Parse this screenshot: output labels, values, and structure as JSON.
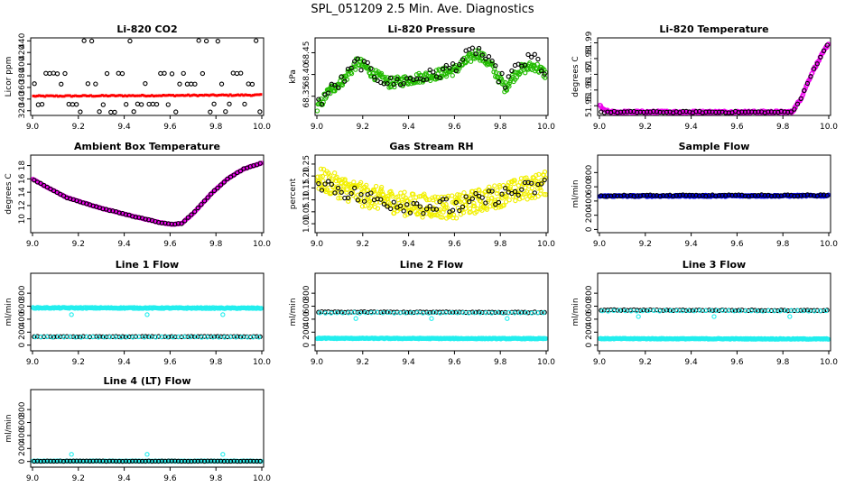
{
  "figure_title": "SPL_051209  2.5 Min. Ave. Diagnostics",
  "chart_data": [
    {
      "type": "scatter",
      "title": "Li-820 CO2",
      "ylabel": "Licor ppm",
      "xlim": [
        9.0,
        10.0
      ],
      "ylim": [
        315,
        442
      ],
      "xticks": [
        "9.0",
        "9.2",
        "9.4",
        "9.6",
        "9.8",
        "10.0"
      ],
      "yticks": [
        {
          "v": 320,
          "label": "320"
        },
        {
          "v": 340,
          "label": "340"
        },
        {
          "v": 360,
          "label": "360"
        },
        {
          "v": 380,
          "label": "380"
        },
        {
          "v": 400,
          "label": "400"
        },
        {
          "v": 420,
          "label": "420"
        },
        {
          "v": 440,
          "label": "440"
        }
      ],
      "series": [
        {
          "name": "co2_avg",
          "color": "#ff0000",
          "shape": "dot",
          "gen": "band",
          "y0": 345,
          "y1": 347,
          "noise": 1,
          "n": 120
        },
        {
          "name": "co2_pts",
          "color": "#000000",
          "shape": "circle",
          "gen": "levels",
          "levels": [
            318,
            331,
            366,
            384,
            440
          ],
          "n": 60
        }
      ]
    },
    {
      "type": "scatter",
      "title": "Li-820 Pressure",
      "ylabel": "kPa",
      "xlim": [
        9.0,
        10.0
      ],
      "ylim": [
        68.31,
        68.48
      ],
      "xticks": [
        "9.0",
        "9.2",
        "9.4",
        "9.6",
        "9.8",
        "10.0"
      ],
      "yticks": [
        {
          "v": 68.35,
          "label": "68.35"
        },
        {
          "v": 68.4,
          "label": "68.40"
        },
        {
          "v": 68.45,
          "label": "68.45"
        }
      ],
      "series": [
        {
          "name": "p_avg",
          "color": "#22bb00",
          "shape": "circle",
          "gen": "curve",
          "pts": [
            [
              9.0,
              68.32
            ],
            [
              9.05,
              68.36
            ],
            [
              9.12,
              68.39
            ],
            [
              9.18,
              68.43
            ],
            [
              9.25,
              68.4
            ],
            [
              9.32,
              68.38
            ],
            [
              9.42,
              68.39
            ],
            [
              9.52,
              68.4
            ],
            [
              9.6,
              68.41
            ],
            [
              9.7,
              68.45
            ],
            [
              9.76,
              68.42
            ],
            [
              9.82,
              68.37
            ],
            [
              9.88,
              68.41
            ],
            [
              9.95,
              68.42
            ],
            [
              10.0,
              68.4
            ]
          ],
          "noise": 0.012,
          "n": 300
        },
        {
          "name": "p_pts",
          "color": "#000000",
          "shape": "circle",
          "gen": "curve",
          "pts": [
            [
              9.0,
              68.33
            ],
            [
              9.05,
              68.36
            ],
            [
              9.12,
              68.39
            ],
            [
              9.18,
              68.43
            ],
            [
              9.25,
              68.4
            ],
            [
              9.32,
              68.38
            ],
            [
              9.42,
              68.39
            ],
            [
              9.52,
              68.4
            ],
            [
              9.6,
              68.42
            ],
            [
              9.7,
              68.46
            ],
            [
              9.76,
              68.42
            ],
            [
              9.82,
              68.38
            ],
            [
              9.88,
              68.42
            ],
            [
              9.95,
              68.44
            ],
            [
              10.0,
              68.4
            ]
          ],
          "noise": 0.015,
          "n": 70
        }
      ]
    },
    {
      "type": "scatter",
      "title": "Li-820 Temperature",
      "ylabel": "degrees C",
      "xlim": [
        9.0,
        10.0
      ],
      "ylim": [
        51.945,
        51.992
      ],
      "xticks": [
        "9.0",
        "9.2",
        "9.4",
        "9.6",
        "9.8",
        "10.0"
      ],
      "yticks": [
        {
          "v": 51.95,
          "label": "51.95"
        },
        {
          "v": 51.96,
          "label": "51.96"
        },
        {
          "v": 51.97,
          "label": "51.97"
        },
        {
          "v": 51.98,
          "label": "51.98"
        },
        {
          "v": 51.99,
          "label": "51.99"
        }
      ],
      "series": [
        {
          "name": "t_avg",
          "color": "#ee00ee",
          "shape": "circle",
          "gen": "curve",
          "pts": [
            [
              8.99,
              51.952
            ],
            [
              9.02,
              51.947
            ],
            [
              9.05,
              51.946
            ],
            [
              9.84,
              51.946
            ],
            [
              9.88,
              51.955
            ],
            [
              9.93,
              51.972
            ],
            [
              10.0,
              51.99
            ]
          ],
          "noise": 0.0008,
          "n": 300
        },
        {
          "name": "t_pts",
          "color": "#000000",
          "shape": "circle",
          "gen": "curve",
          "pts": [
            [
              9.0,
              51.946
            ],
            [
              9.84,
              51.946
            ],
            [
              9.88,
              51.955
            ],
            [
              9.93,
              51.972
            ],
            [
              10.0,
              51.99
            ]
          ],
          "noise": 0.0005,
          "n": 70
        }
      ]
    },
    {
      "type": "scatter",
      "title": "Ambient Box Temperature",
      "ylabel": "degrees C",
      "xlim": [
        9.0,
        10.0
      ],
      "ylim": [
        8.2,
        19.3
      ],
      "xticks": [
        "9.0",
        "9.2",
        "9.4",
        "9.6",
        "9.8",
        "10.0"
      ],
      "yticks": [
        {
          "v": 10,
          "label": "10"
        },
        {
          "v": 12,
          "label": "12"
        },
        {
          "v": 14,
          "label": "14"
        },
        {
          "v": 16,
          "label": "16"
        },
        {
          "v": 18,
          "label": "18"
        }
      ],
      "series": [
        {
          "name": "box_avg",
          "color": "#ee00ee",
          "shape": "circle",
          "gen": "curve",
          "pts": [
            [
              9.0,
              16.0
            ],
            [
              9.05,
              15.0
            ],
            [
              9.15,
              13.2
            ],
            [
              9.3,
              11.6
            ],
            [
              9.45,
              10.3
            ],
            [
              9.55,
              9.5
            ],
            [
              9.6,
              9.2
            ],
            [
              9.65,
              9.3
            ],
            [
              9.7,
              10.8
            ],
            [
              9.78,
              13.8
            ],
            [
              9.85,
              16.0
            ],
            [
              9.92,
              17.5
            ],
            [
              10.0,
              18.4
            ]
          ],
          "noise": 0.05,
          "n": 280
        },
        {
          "name": "box_pts",
          "color": "#000000",
          "shape": "circle",
          "gen": "curve",
          "pts": [
            [
              9.0,
              16.0
            ],
            [
              9.05,
              15.0
            ],
            [
              9.15,
              13.2
            ],
            [
              9.3,
              11.6
            ],
            [
              9.45,
              10.3
            ],
            [
              9.55,
              9.5
            ],
            [
              9.6,
              9.2
            ],
            [
              9.65,
              9.3
            ],
            [
              9.7,
              10.8
            ],
            [
              9.78,
              13.8
            ],
            [
              9.85,
              16.0
            ],
            [
              9.92,
              17.5
            ],
            [
              10.0,
              18.4
            ]
          ],
          "noise": 0.05,
          "n": 70
        }
      ]
    },
    {
      "type": "scatter",
      "title": "Gas Stream RH",
      "ylabel": "percent",
      "xlim": [
        9.0,
        10.0
      ],
      "ylim": [
        0.97,
        1.28
      ],
      "xticks": [
        "9.0",
        "9.2",
        "9.4",
        "9.6",
        "9.8",
        "10.0"
      ],
      "yticks": [
        {
          "v": 1.0,
          "label": "1.00"
        },
        {
          "v": 1.05,
          "label": "1.05"
        },
        {
          "v": 1.1,
          "label": "1.10"
        },
        {
          "v": 1.15,
          "label": "1.15"
        },
        {
          "v": 1.2,
          "label": "1.20"
        },
        {
          "v": 1.25,
          "label": "1.25"
        }
      ],
      "series": [
        {
          "name": "rh_avg",
          "color": "#f2f000",
          "shape": "circle",
          "gen": "curve",
          "pts": [
            [
              9.0,
              1.19
            ],
            [
              9.2,
              1.12
            ],
            [
              9.4,
              1.08
            ],
            [
              9.6,
              1.07
            ],
            [
              9.8,
              1.12
            ],
            [
              10.0,
              1.17
            ]
          ],
          "noise": 0.05,
          "n": 420
        },
        {
          "name": "rh_pts",
          "color": "#000000",
          "shape": "circle",
          "gen": "curve",
          "pts": [
            [
              9.0,
              1.18
            ],
            [
              9.2,
              1.11
            ],
            [
              9.4,
              1.08
            ],
            [
              9.6,
              1.07
            ],
            [
              9.8,
              1.12
            ],
            [
              10.0,
              1.16
            ]
          ],
          "noise": 0.035,
          "n": 70
        }
      ]
    },
    {
      "type": "scatter",
      "title": "Sample Flow",
      "ylabel": "ml/min",
      "xlim": [
        9.0,
        10.0
      ],
      "ylim": [
        -20,
        1020
      ],
      "xticks": [
        "9.0",
        "9.2",
        "9.4",
        "9.6",
        "9.8",
        "10.0"
      ],
      "yticks": [
        {
          "v": 0,
          "label": "0"
        },
        {
          "v": 200,
          "label": "200"
        },
        {
          "v": 400,
          "label": "400"
        },
        {
          "v": 600,
          "label": "600"
        },
        {
          "v": 800,
          "label": "800"
        }
      ],
      "series": [
        {
          "name": "sf_avg",
          "color": "#0000dd",
          "shape": "circle",
          "gen": "band",
          "y0": 470,
          "y1": 475,
          "noise": 10,
          "n": 260
        },
        {
          "name": "sf_pts",
          "color": "#000000",
          "shape": "circle",
          "gen": "band",
          "y0": 475,
          "y1": 480,
          "noise": 10,
          "n": 70
        }
      ]
    },
    {
      "type": "scatter",
      "title": "Line 1 Flow",
      "ylabel": "ml/min",
      "xlim": [
        9.0,
        10.0
      ],
      "ylim": [
        -60,
        1080
      ],
      "xticks": [
        "9.0",
        "9.2",
        "9.4",
        "9.6",
        "9.8",
        "10.0"
      ],
      "yticks": [
        {
          "v": 0,
          "label": "0"
        },
        {
          "v": 200,
          "label": "200"
        },
        {
          "v": 400,
          "label": "400"
        },
        {
          "v": 600,
          "label": "600"
        },
        {
          "v": 800,
          "label": "800"
        }
      ],
      "series": [
        {
          "name": "l1_avg",
          "color": "#22eeee",
          "shape": "circle",
          "gen": "band",
          "y0": 575,
          "y1": 570,
          "noise": 8,
          "n": 240,
          "outliers": [
            [
              9.17,
              470
            ],
            [
              9.5,
              470
            ],
            [
              9.83,
              470
            ]
          ]
        },
        {
          "name": "l1_pts",
          "color": "#000000",
          "shape": "circle",
          "gen": "band",
          "y0": 130,
          "y1": 130,
          "noise": 4,
          "n": 70
        },
        {
          "name": "l1_low",
          "color": "#22eeee",
          "shape": "circle",
          "gen": "band",
          "y0": 125,
          "y1": 125,
          "noise": 4,
          "n": 40
        }
      ]
    },
    {
      "type": "scatter",
      "title": "Line 2 Flow",
      "ylabel": "ml/min",
      "xlim": [
        9.0,
        10.0
      ],
      "ylim": [
        -60,
        1080
      ],
      "xticks": [
        "9.0",
        "9.2",
        "9.4",
        "9.6",
        "9.8",
        "10.0"
      ],
      "yticks": [
        {
          "v": 0,
          "label": "0"
        },
        {
          "v": 200,
          "label": "200"
        },
        {
          "v": 400,
          "label": "400"
        },
        {
          "v": 600,
          "label": "600"
        },
        {
          "v": 800,
          "label": "800"
        }
      ],
      "series": [
        {
          "name": "l2_avg",
          "color": "#22eeee",
          "shape": "circle",
          "gen": "band",
          "y0": 105,
          "y1": 100,
          "noise": 6,
          "n": 260
        },
        {
          "name": "l2_pts",
          "color": "#000000",
          "shape": "circle",
          "gen": "band",
          "y0": 510,
          "y1": 505,
          "noise": 6,
          "n": 70
        },
        {
          "name": "l2_hi",
          "color": "#22eeee",
          "shape": "circle",
          "gen": "band",
          "y0": 500,
          "y1": 500,
          "noise": 6,
          "n": 40,
          "outliers": [
            [
              9.17,
              410
            ],
            [
              9.5,
              410
            ],
            [
              9.83,
              410
            ]
          ]
        }
      ]
    },
    {
      "type": "scatter",
      "title": "Line 3 Flow",
      "ylabel": "ml/min",
      "xlim": [
        9.0,
        10.0
      ],
      "ylim": [
        -60,
        1080
      ],
      "xticks": [
        "9.0",
        "9.2",
        "9.4",
        "9.6",
        "9.8",
        "10.0"
      ],
      "yticks": [
        {
          "v": 0,
          "label": "0"
        },
        {
          "v": 200,
          "label": "200"
        },
        {
          "v": 400,
          "label": "400"
        },
        {
          "v": 600,
          "label": "600"
        },
        {
          "v": 800,
          "label": "800"
        }
      ],
      "series": [
        {
          "name": "l3_avg",
          "color": "#22eeee",
          "shape": "circle",
          "gen": "band",
          "y0": 100,
          "y1": 95,
          "noise": 6,
          "n": 260
        },
        {
          "name": "l3_pts",
          "color": "#000000",
          "shape": "circle",
          "gen": "band",
          "y0": 540,
          "y1": 535,
          "noise": 6,
          "n": 70
        },
        {
          "name": "l3_hi",
          "color": "#22eeee",
          "shape": "circle",
          "gen": "band",
          "y0": 530,
          "y1": 530,
          "noise": 6,
          "n": 40,
          "outliers": [
            [
              9.17,
              440
            ],
            [
              9.5,
              440
            ],
            [
              9.83,
              440
            ]
          ]
        }
      ]
    },
    {
      "type": "scatter",
      "title": "Line 4 (LT) Flow",
      "ylabel": "ml/min",
      "xlim": [
        9.0,
        10.0
      ],
      "ylim": [
        -60,
        1080
      ],
      "xticks": [
        "9.0",
        "9.2",
        "9.4",
        "9.6",
        "9.8",
        "10.0"
      ],
      "yticks": [
        {
          "v": 0,
          "label": "0"
        },
        {
          "v": 200,
          "label": "200"
        },
        {
          "v": 400,
          "label": "400"
        },
        {
          "v": 600,
          "label": "600"
        },
        {
          "v": 800,
          "label": "800"
        }
      ],
      "series": [
        {
          "name": "l4_avg",
          "color": "#22eeee",
          "shape": "circle",
          "gen": "band",
          "y0": 5,
          "y1": 5,
          "noise": 3,
          "n": 200,
          "outliers": [
            [
              9.17,
              110
            ],
            [
              9.5,
              110
            ],
            [
              9.83,
              110
            ]
          ]
        },
        {
          "name": "l4_pts",
          "color": "#000000",
          "shape": "circle",
          "gen": "band",
          "y0": 5,
          "y1": 5,
          "noise": 3,
          "n": 70
        }
      ]
    }
  ]
}
